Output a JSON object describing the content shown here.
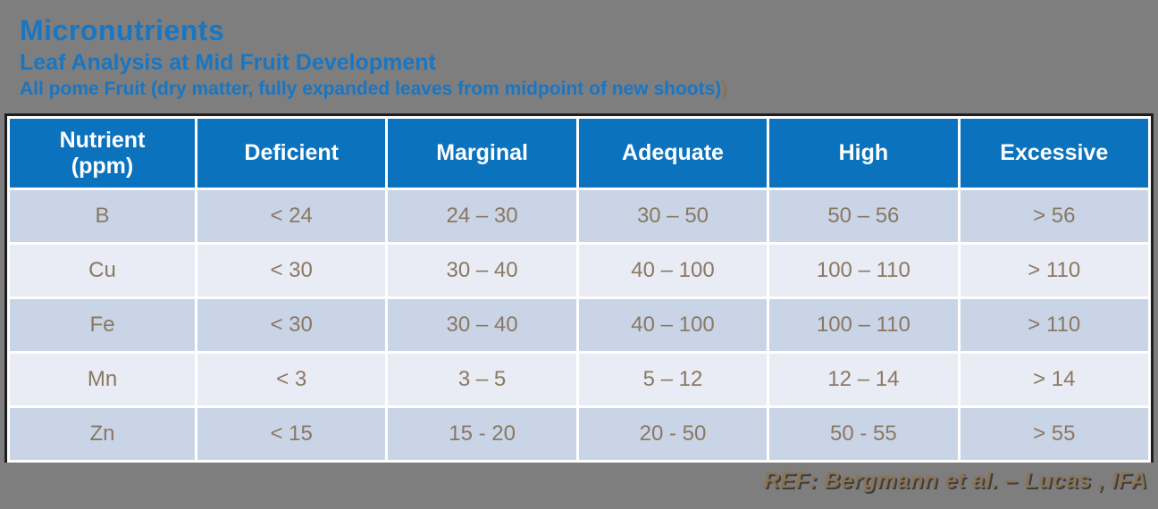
{
  "colors": {
    "bg_gray": "#7E7E7E",
    "title_blue": "#1976C3",
    "header_bg": "#0B72BE",
    "header_text": "#FFFFFF",
    "row_dark": "#C9D4E6",
    "row_light": "#E9ECF5",
    "cell_text": "#8A7862",
    "footer_text": "#8A7458",
    "footer_shadow": "#3E3E3E",
    "paren_brown": "#857456",
    "table_border": "#1E1E1E"
  },
  "header": {
    "title": "Micronutrients",
    "subtitle": "Leaf Analysis at Mid Fruit Development",
    "detail": "All pome Fruit (dry matter, fully expanded leaves from midpoint of new shoots)",
    "detail_suffix": ")"
  },
  "table": {
    "columns": [
      "Nutrient\n(ppm)",
      "Deficient",
      "Marginal",
      "Adequate",
      "High",
      "Excessive"
    ],
    "rows": [
      {
        "cells": [
          "B",
          "< 24",
          "24 – 30",
          "30 – 50",
          "50 – 56",
          "> 56"
        ]
      },
      {
        "cells": [
          "Cu",
          "< 30",
          "30 – 40",
          "40 – 100",
          "100 – 110",
          "> 110"
        ]
      },
      {
        "cells": [
          "Fe",
          "< 30",
          "30 – 40",
          "40 – 100",
          "100 – 110",
          "> 110"
        ]
      },
      {
        "cells": [
          "Mn",
          "< 3",
          "3 – 5",
          "5 – 12",
          "12 – 14",
          "> 14"
        ]
      },
      {
        "cells": [
          "Zn",
          "< 15",
          "15 - 20",
          "20 - 50",
          "50 - 55",
          "> 55"
        ]
      }
    ]
  },
  "footer": {
    "reference": "REF: Bergmann et al. – Lucas , IFA"
  }
}
